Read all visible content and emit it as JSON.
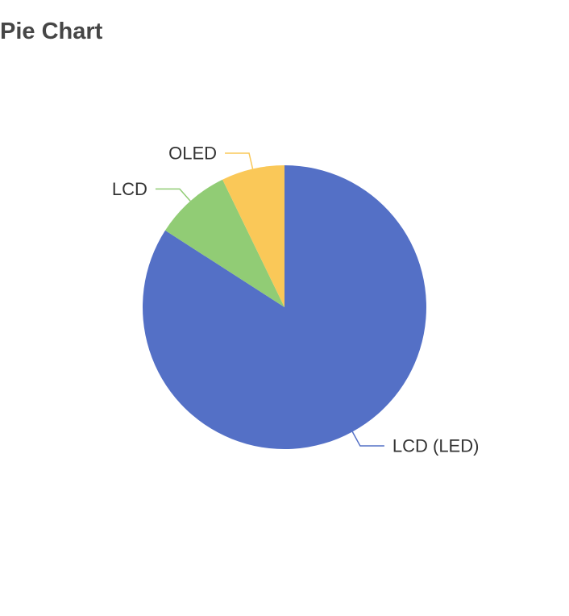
{
  "title": "Pie Chart",
  "chart_data": {
    "type": "pie",
    "title": "Pie Chart",
    "labels": [
      "LCD (LED)",
      "LCD",
      "OLED"
    ],
    "values": [
      84.1,
      8.7,
      7.2
    ],
    "colors": [
      "#5470c6",
      "#91cc75",
      "#fac858"
    ],
    "legend": "none",
    "label_position": "outside"
  }
}
